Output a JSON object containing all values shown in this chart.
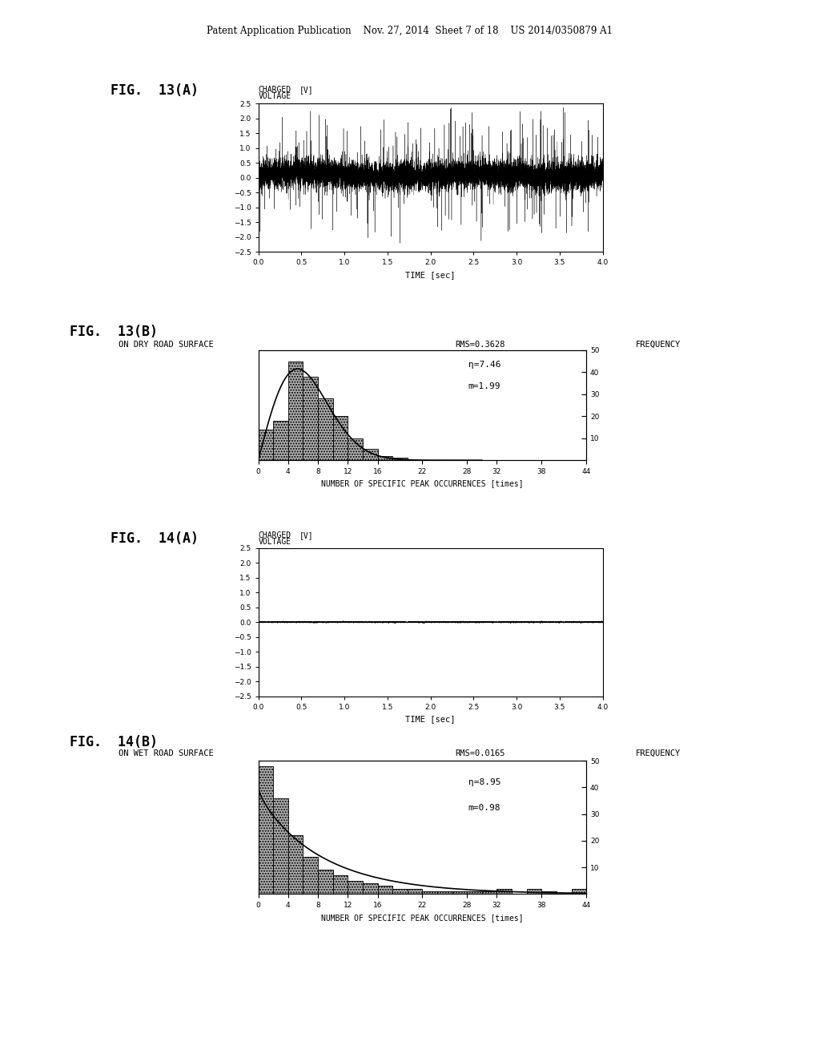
{
  "header_text": "Patent Application Publication    Nov. 27, 2014  Sheet 7 of 18    US 2014/0350879 A1",
  "fig13a_label": "FIG.  13(A)",
  "fig13b_label": "FIG.  13(B)",
  "fig14a_label": "FIG.  14(A)",
  "fig14b_label": "FIG.  14(B)",
  "voltage_ylabel_line1": "CHARGED",
  "voltage_ylabel_line2": "VOLTAGE",
  "voltage_ylabel_unit": "[V]",
  "time_xlabel": "TIME [sec]",
  "ylim_voltage": [
    -2.5,
    2.5
  ],
  "xlim_time": [
    0,
    4
  ],
  "yticks_voltage": [
    -2.5,
    -2,
    -1.5,
    -1,
    -0.5,
    0,
    0.5,
    1,
    1.5,
    2,
    2.5
  ],
  "xticks_time": [
    0,
    0.5,
    1,
    1.5,
    2,
    2.5,
    3,
    3.5,
    4
  ],
  "fig13b_title": "ON DRY ROAD SURFACE",
  "fig13b_rms": "RMS=0.3628",
  "fig13b_freq_label": "FREQUENCY",
  "fig13b_eta": "η=7.46",
  "fig13b_m": "m=1.99",
  "fig13b_bar_centers": [
    1,
    3,
    5,
    7,
    9,
    11,
    13,
    15,
    17,
    19
  ],
  "fig13b_bar_heights": [
    14,
    18,
    45,
    38,
    28,
    20,
    10,
    5,
    2,
    1
  ],
  "fig13b_bar_width": 2,
  "fig13b_eta_val": 7.46,
  "fig13b_m_val": 1.99,
  "fig13b_xlim": [
    0,
    44
  ],
  "fig13b_xticks": [
    0,
    4,
    8,
    12,
    16,
    22,
    28,
    32,
    38,
    44
  ],
  "fig13b_ylim": [
    0,
    50
  ],
  "fig13b_yticks_right": [
    10,
    20,
    30,
    40,
    50
  ],
  "fig13b_xlabel": "NUMBER OF SPECIFIC PEAK OCCURRENCES [times]",
  "fig14b_title": "ON WET ROAD SURFACE",
  "fig14b_rms": "RMS=0.0165",
  "fig14b_freq_label": "FREQUENCY",
  "fig14b_eta": "η=8.95",
  "fig14b_m": "m=0.98",
  "fig14b_bar_centers": [
    1,
    3,
    5,
    7,
    9,
    11,
    13,
    15,
    17,
    19,
    21,
    23,
    25,
    27,
    29,
    31,
    33,
    35,
    37,
    39,
    41,
    43
  ],
  "fig14b_bar_heights": [
    48,
    36,
    22,
    14,
    9,
    7,
    5,
    4,
    3,
    2,
    2,
    1,
    1,
    1,
    1,
    1,
    2,
    0,
    2,
    1,
    0,
    2
  ],
  "fig14b_bar_width": 2,
  "fig14b_eta_val": 8.95,
  "fig14b_m_val": 0.98,
  "fig14b_xlim": [
    0,
    44
  ],
  "fig14b_xticks": [
    0,
    4,
    8,
    12,
    16,
    22,
    28,
    32,
    38,
    44
  ],
  "fig14b_ylim": [
    0,
    50
  ],
  "fig14b_yticks_right": [
    10,
    20,
    30,
    40,
    50
  ],
  "fig14b_xlabel": "NUMBER OF SPECIFIC PEAK OCCURRENCES [times]",
  "bg_color": "#ffffff",
  "bar_facecolor": "#b0b0b0",
  "bar_edgecolor": "#000000",
  "curve_color": "#000000",
  "signal_color": "#000000"
}
